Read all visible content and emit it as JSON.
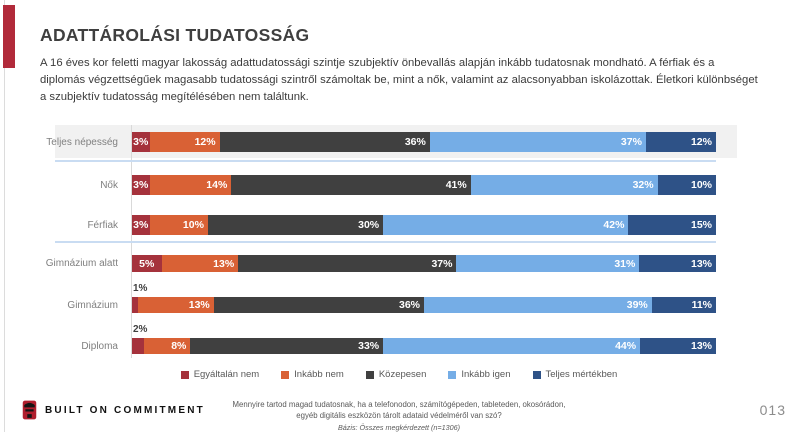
{
  "slide": {
    "title": "ADATTÁROLÁSI TUDATOSSÁG",
    "intro": "A 16 éves kor feletti magyar lakosság adattudatossági szintje szubjektív önbevallás alapján inkább tudatosnak mondható. A férfiak és a diplomás végzettségűek magasabb tudatossági szintről számoltak be, mint a nők, valamint az alacsonyabban iskolázottak. Életkori különbséget a szubjektív tudatosság megítélésében nem találtunk.",
    "page_number": "013"
  },
  "footer": {
    "brand": "BUILT ON COMMITMENT",
    "question_line1": "Mennyire tartod magad tudatosnak, ha a telefonodon, számítógépeden, tableteden, okosórádon,",
    "question_line2": "egyéb digitális eszközön tárolt adataid védelméről van szó?",
    "basis": "Bázis: Összes megkérdezett (n=1306)"
  },
  "colors": {
    "accent_red": "#b12a3a",
    "highlight_band": "#f1f1f1",
    "separator_blue": "#c9dcf2",
    "category_label": "#7f7f7f",
    "legend_text": "#595959"
  },
  "chart_data": {
    "type": "bar",
    "stacked": true,
    "orientation": "horizontal",
    "unit": "%",
    "xlim": [
      0,
      100
    ],
    "grid": false,
    "legend_position": "bottom",
    "title": "",
    "categories": [
      "Teljes népesség",
      "Nők",
      "Férfiak",
      "Gimnázium alatt",
      "Gimnázium",
      "Diploma"
    ],
    "series": [
      {
        "name": "Egyáltalán nem",
        "color": "#a5323c",
        "values": [
          3,
          3,
          3,
          5,
          1,
          2
        ]
      },
      {
        "name": "Inkább nem",
        "color": "#d96135",
        "values": [
          12,
          14,
          10,
          13,
          13,
          8
        ]
      },
      {
        "name": "Közepesen",
        "color": "#404040",
        "values": [
          36,
          41,
          30,
          37,
          36,
          33
        ]
      },
      {
        "name": "Inkább igen",
        "color": "#75ade6",
        "values": [
          37,
          32,
          42,
          31,
          39,
          44
        ]
      },
      {
        "name": "Teljes mértékben",
        "color": "#2e5287",
        "values": [
          12,
          10,
          15,
          13,
          11,
          13
        ]
      }
    ],
    "highlighted_category": "Teljes népesség",
    "group_separators_after": [
      "Teljes népesség",
      "Férfiak"
    ],
    "outside_labels": {
      "Gimnázium": "1%",
      "Diploma": "2%"
    }
  }
}
